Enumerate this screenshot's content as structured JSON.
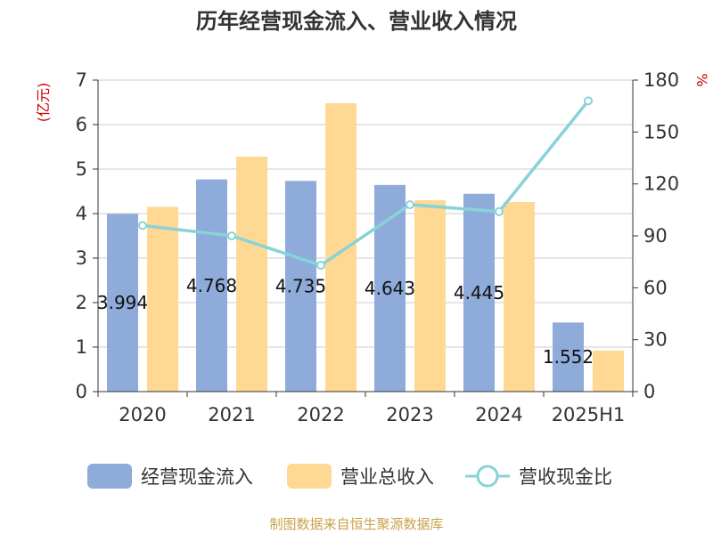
{
  "chart_data": {
    "type": "bar",
    "title": "历年经营现金流入、营业收入情况",
    "categories": [
      "2020",
      "2021",
      "2022",
      "2023",
      "2024",
      "2025H1"
    ],
    "series": [
      {
        "name": "经营现金流入",
        "kind": "bar",
        "axis": "left",
        "color": "#8eabd9",
        "values": [
          3.994,
          4.768,
          4.735,
          4.643,
          4.445,
          1.552
        ],
        "labels": [
          "3.994",
          "4.768",
          "4.735",
          "4.643",
          "4.445",
          "1.552"
        ]
      },
      {
        "name": "营业总收入",
        "kind": "bar",
        "axis": "left",
        "color": "#ffd893",
        "values": [
          4.15,
          5.28,
          6.48,
          4.3,
          4.26,
          0.92
        ]
      },
      {
        "name": "营收现金比",
        "kind": "line",
        "axis": "right",
        "color": "#88d3d8",
        "values": [
          96,
          90,
          73,
          108,
          104,
          168
        ]
      }
    ],
    "yleft": {
      "unit": "(亿元)",
      "min": 0,
      "max": 7,
      "ticks": [
        "0",
        "1",
        "2",
        "3",
        "4",
        "5",
        "6",
        "7"
      ]
    },
    "yright": {
      "unit": "%",
      "min": 0,
      "max": 180,
      "ticks": [
        "0",
        "30",
        "60",
        "90",
        "120",
        "150",
        "180"
      ]
    },
    "grid": true,
    "legend_position": "bottom",
    "source": "制图数据来自恒生聚源数据库"
  }
}
